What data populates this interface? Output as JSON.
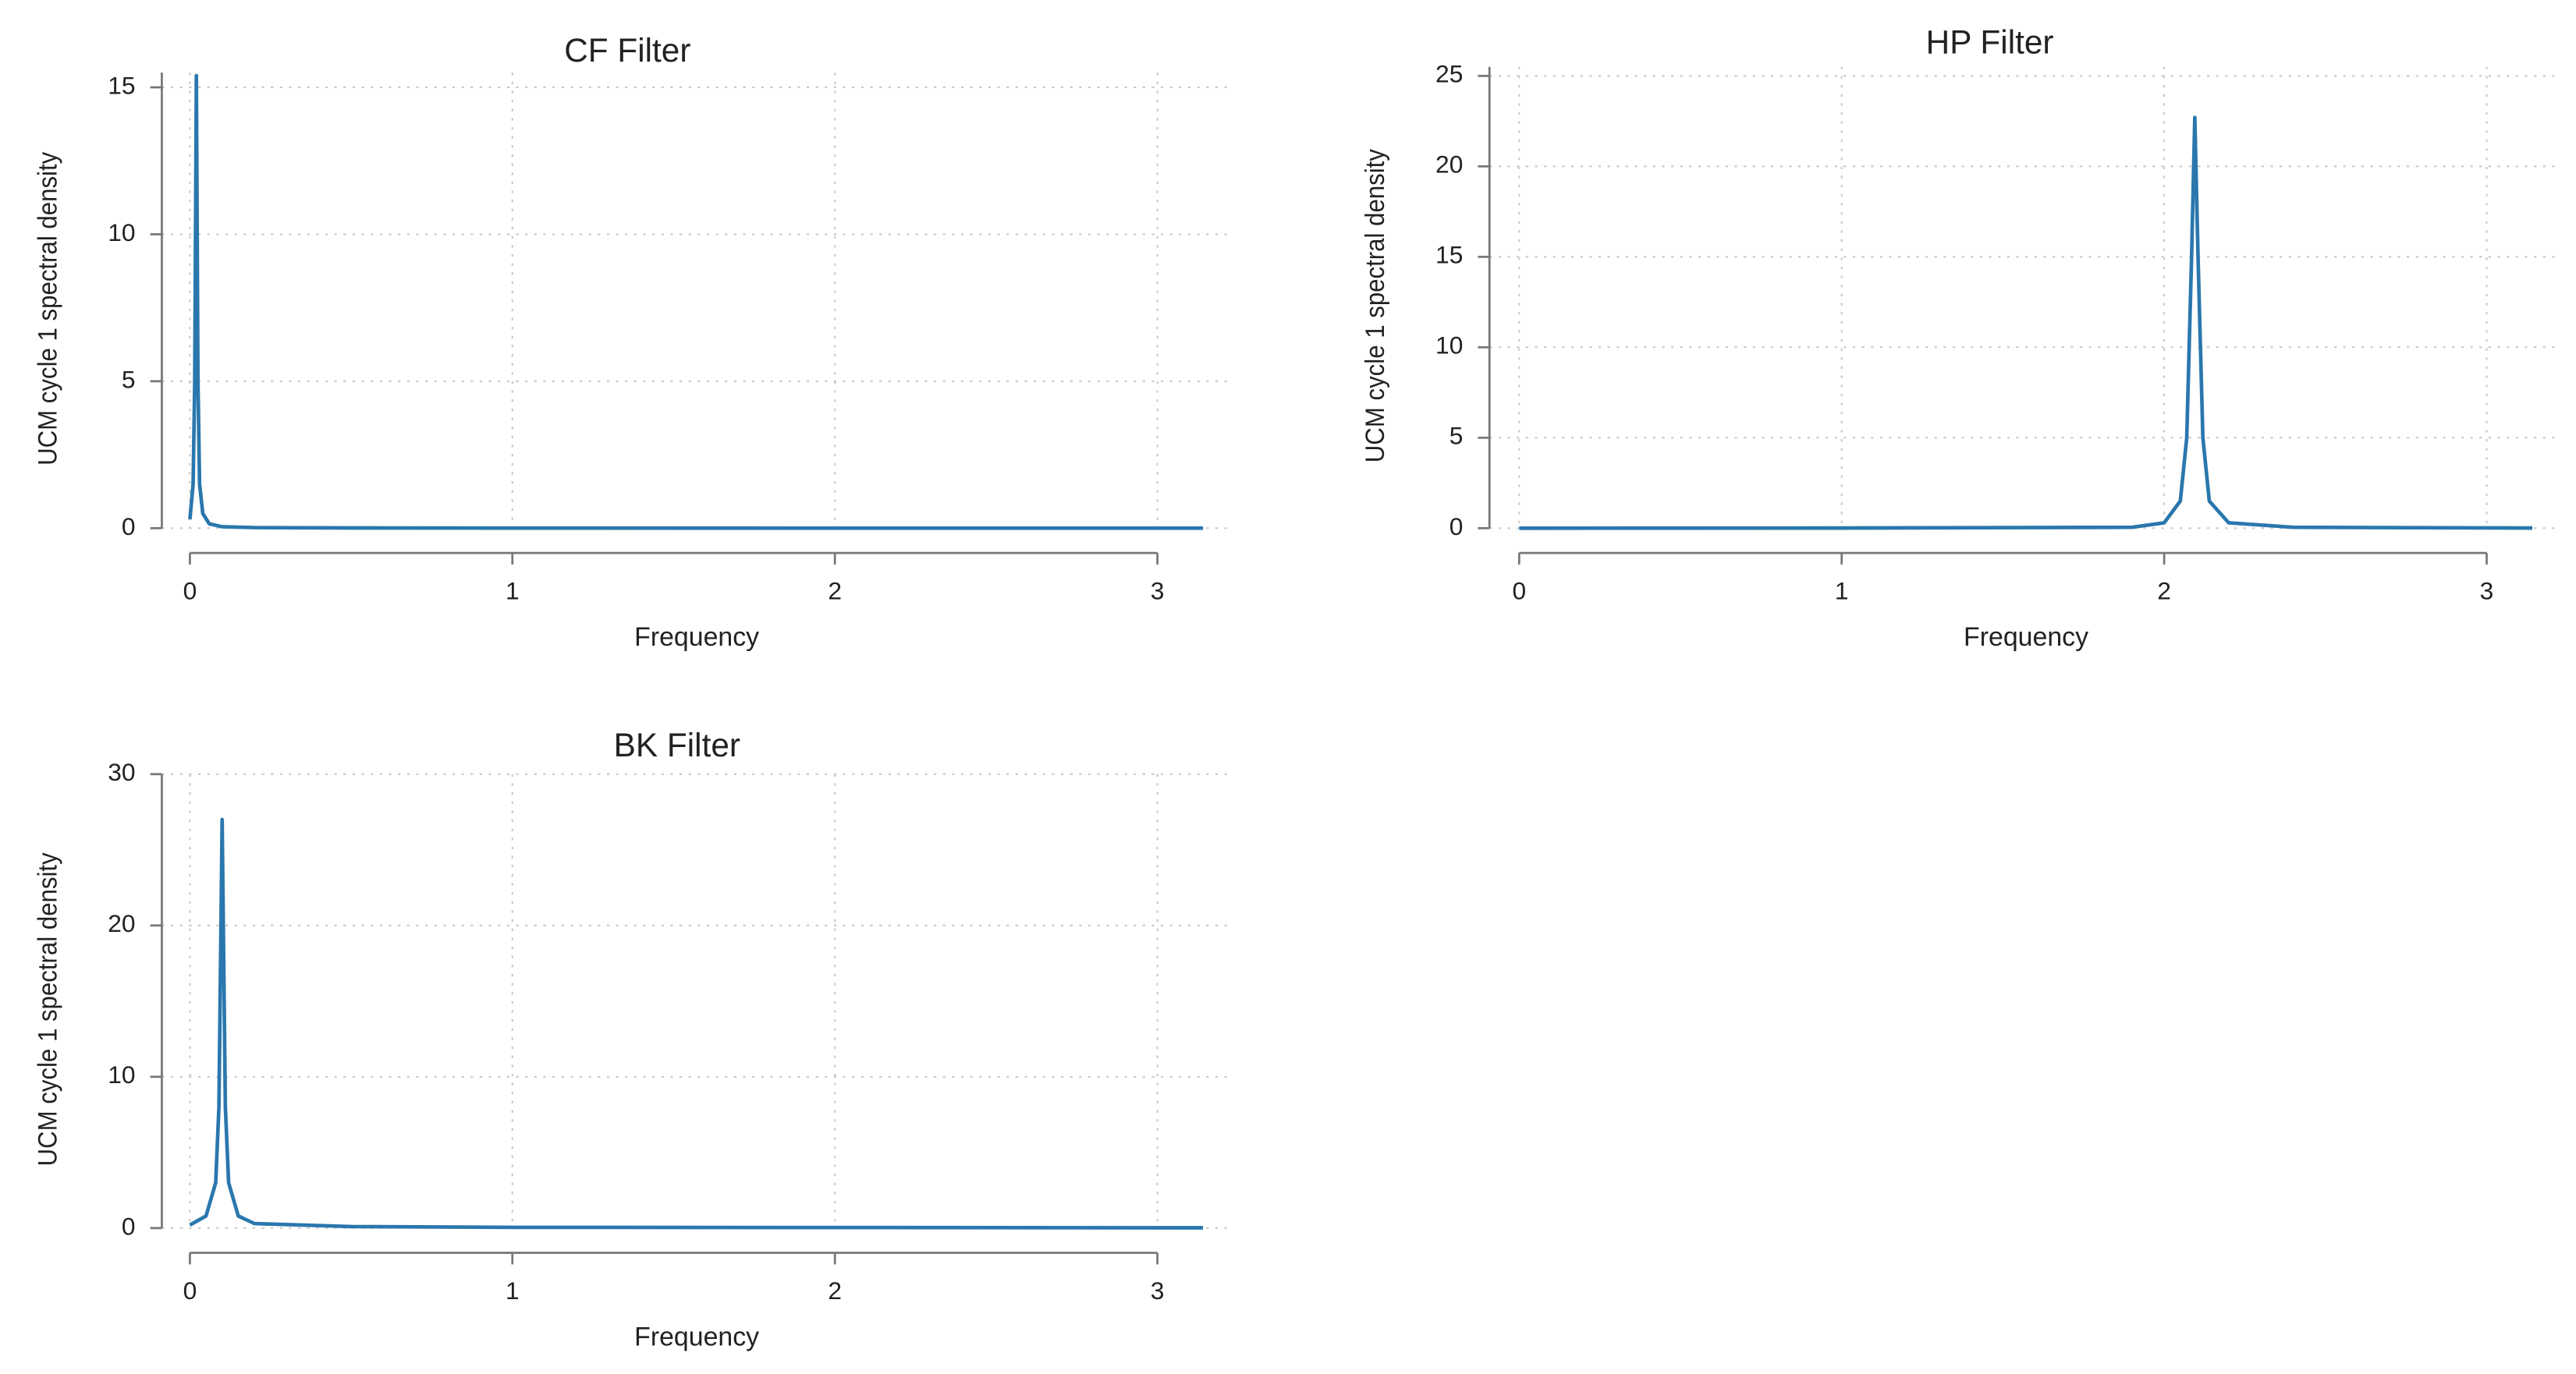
{
  "chart_data": [
    {
      "type": "line",
      "title": "CF Filter",
      "xlabel": "Frequency",
      "ylabel": "UCM cycle 1 spectral density",
      "x": [
        0,
        0.01,
        0.015,
        0.02,
        0.025,
        0.03,
        0.04,
        0.06,
        0.1,
        0.2,
        0.5,
        1,
        2,
        3.14159
      ],
      "series": [
        {
          "color": "#2a77ad",
          "values": [
            0.3,
            1.5,
            5,
            15.4,
            5,
            1.5,
            0.5,
            0.15,
            0.05,
            0.02,
            0.01,
            0.005,
            0.002,
            0.001
          ]
        }
      ],
      "xlim": [
        0,
        3.14159
      ],
      "ylim": [
        0,
        15.5
      ],
      "xticks": [
        0,
        1,
        2,
        3
      ],
      "yticks": [
        0,
        5,
        10,
        15
      ],
      "grid": true
    },
    {
      "type": "line",
      "title": "HP Filter",
      "xlabel": "Frequency",
      "ylabel": "UCM cycle 1 spectral density",
      "x": [
        0,
        1,
        1.9,
        2.0,
        2.05,
        2.07,
        2.085,
        2.095,
        2.105,
        2.12,
        2.14,
        2.2,
        2.4,
        3.14159
      ],
      "series": [
        {
          "color": "#2a77ad",
          "values": [
            0,
            0.01,
            0.05,
            0.3,
            1.5,
            5,
            15,
            22.7,
            15,
            5,
            1.5,
            0.3,
            0.05,
            0.01
          ]
        }
      ],
      "xlim": [
        0,
        3.14159
      ],
      "ylim": [
        0,
        25.5
      ],
      "xticks": [
        0,
        1,
        2,
        3
      ],
      "yticks": [
        0,
        5,
        10,
        15,
        20,
        25
      ],
      "grid": true
    },
    {
      "type": "line",
      "title": "BK Filter",
      "xlabel": "Frequency",
      "ylabel": "UCM cycle 1 spectral density",
      "x": [
        0,
        0.05,
        0.08,
        0.09,
        0.1,
        0.11,
        0.12,
        0.15,
        0.2,
        0.5,
        1,
        3.14159
      ],
      "series": [
        {
          "color": "#2a77ad",
          "values": [
            0.2,
            0.8,
            3,
            8,
            27,
            8,
            3,
            0.8,
            0.3,
            0.1,
            0.05,
            0.02
          ]
        }
      ],
      "xlim": [
        0,
        3.14159
      ],
      "ylim": [
        0,
        30
      ],
      "xticks": [
        0,
        1,
        2,
        3
      ],
      "yticks": [
        0,
        10,
        20,
        30
      ],
      "grid": true
    }
  ]
}
